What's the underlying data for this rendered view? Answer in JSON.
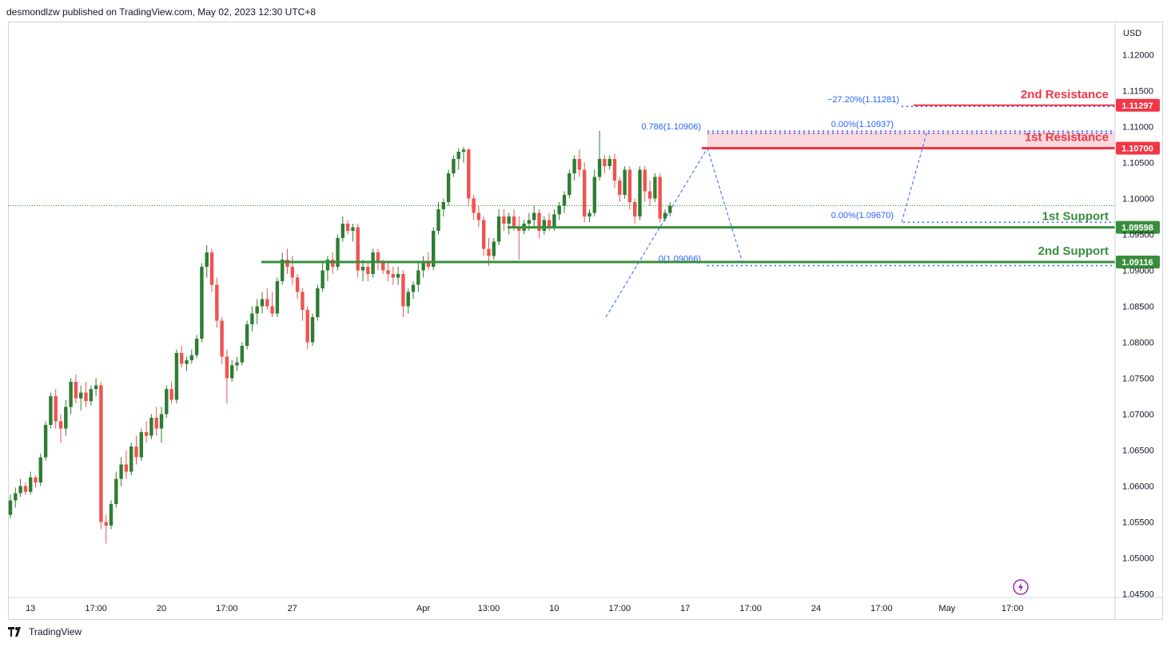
{
  "header": {
    "publish_line": "desmondlzw published on TradingView.com, May 02, 2023 12:30 UTC+8"
  },
  "footer": {
    "brand": "TradingView"
  },
  "colors": {
    "up": "#2e7d32",
    "down": "#ef5350",
    "resistance": "#f23645",
    "support": "#388e3c",
    "fib": "#2962ff",
    "zone": "#f7c9cf"
  },
  "chart_data": {
    "type": "candlestick",
    "symbol_currency": "USD",
    "ylim": [
      1.0445,
      1.1245
    ],
    "y_ticks": [
      "1.12000",
      "1.11500",
      "1.11000",
      "1.10500",
      "1.10000",
      "1.09500",
      "1.09000",
      "1.08500",
      "1.08000",
      "1.07500",
      "1.07000",
      "1.06500",
      "1.06000",
      "1.05500",
      "1.05000",
      "1.04500"
    ],
    "x_ticks": [
      {
        "label": "13",
        "bar": 4
      },
      {
        "label": "17:00",
        "bar": 17
      },
      {
        "label": "20",
        "bar": 30
      },
      {
        "label": "17:00",
        "bar": 43
      },
      {
        "label": "27",
        "bar": 56
      },
      {
        "label": "Apr",
        "bar": 82
      },
      {
        "label": "13:00",
        "bar": 95
      },
      {
        "label": "10",
        "bar": 108
      },
      {
        "label": "17:00",
        "bar": 121
      },
      {
        "label": "17",
        "bar": 134
      },
      {
        "label": "17:00",
        "bar": 147
      },
      {
        "label": "24",
        "bar": 160
      },
      {
        "label": "17:00",
        "bar": 173
      },
      {
        "label": "May",
        "bar": 186
      },
      {
        "label": "17:00",
        "bar": 199
      }
    ],
    "levels": [
      {
        "label": "2nd Resistance",
        "price": 1.11297,
        "price_label": "1.11297",
        "kind": "resistance"
      },
      {
        "label": "1st Resistance",
        "price": 1.107,
        "price_label": "1.10700",
        "kind": "resistance"
      },
      {
        "label": "1st Support",
        "price": 1.09598,
        "price_label": "1.09598",
        "kind": "support"
      },
      {
        "label": "2nd Support",
        "price": 1.09116,
        "price_label": "1.09116",
        "kind": "support"
      }
    ],
    "fib_labels": [
      {
        "text": "−27.20%(1.11281)",
        "price": 1.11281
      },
      {
        "text": "0.786(1.10906)",
        "price": 1.10906
      },
      {
        "text": "0.00%(1.10937)",
        "price": 1.10937
      },
      {
        "text": "0.00%(1.09670)",
        "price": 1.0967
      },
      {
        "text": "0(1.09066)",
        "price": 1.09066
      }
    ],
    "candles": [
      [
        1.056,
        1.0588,
        1.0555,
        1.058
      ],
      [
        1.058,
        1.0598,
        1.057,
        1.059
      ],
      [
        1.059,
        1.061,
        1.0585,
        1.06
      ],
      [
        1.06,
        1.0605,
        1.0588,
        1.0592
      ],
      [
        1.0592,
        1.062,
        1.0588,
        1.0612
      ],
      [
        1.0612,
        1.0615,
        1.0598,
        1.0605
      ],
      [
        1.0605,
        1.0645,
        1.06,
        1.064
      ],
      [
        1.064,
        1.069,
        1.0635,
        1.0685
      ],
      [
        1.0685,
        1.073,
        1.068,
        1.0725
      ],
      [
        1.0725,
        1.0735,
        1.068,
        1.069
      ],
      [
        1.069,
        1.07,
        1.066,
        1.068
      ],
      [
        1.068,
        1.072,
        1.067,
        1.071
      ],
      [
        1.071,
        1.075,
        1.07,
        1.0745
      ],
      [
        1.0745,
        1.0755,
        1.0715,
        1.0722
      ],
      [
        1.0722,
        1.074,
        1.0705,
        1.073
      ],
      [
        1.073,
        1.0745,
        1.071,
        1.0718
      ],
      [
        1.0718,
        1.074,
        1.0712,
        1.0735
      ],
      [
        1.0735,
        1.075,
        1.0725,
        1.074
      ],
      [
        1.074,
        1.0745,
        1.054,
        1.055
      ],
      [
        1.055,
        1.056,
        1.052,
        1.0545
      ],
      [
        1.0545,
        1.058,
        1.054,
        1.0575
      ],
      [
        1.0575,
        1.062,
        1.057,
        1.061
      ],
      [
        1.061,
        1.064,
        1.06,
        1.063
      ],
      [
        1.063,
        1.065,
        1.061,
        1.062
      ],
      [
        1.062,
        1.066,
        1.0615,
        1.0655
      ],
      [
        1.0655,
        1.067,
        1.063,
        1.064
      ],
      [
        1.064,
        1.068,
        1.0635,
        1.0675
      ],
      [
        1.0675,
        1.069,
        1.066,
        1.067
      ],
      [
        1.067,
        1.07,
        1.0665,
        1.0695
      ],
      [
        1.0695,
        1.071,
        1.067,
        1.068
      ],
      [
        1.068,
        1.071,
        1.066,
        1.07
      ],
      [
        1.07,
        1.074,
        1.0695,
        1.0735
      ],
      [
        1.0735,
        1.0745,
        1.0715,
        1.072
      ],
      [
        1.072,
        1.079,
        1.0715,
        1.0785
      ],
      [
        1.0785,
        1.0795,
        1.0765,
        1.077
      ],
      [
        1.077,
        1.078,
        1.076,
        1.0775
      ],
      [
        1.0775,
        1.079,
        1.077,
        1.0782
      ],
      [
        1.0782,
        1.081,
        1.0778,
        1.0805
      ],
      [
        1.0805,
        1.091,
        1.08,
        1.0905
      ],
      [
        1.0905,
        1.0935,
        1.089,
        1.0925
      ],
      [
        1.0925,
        1.093,
        1.087,
        1.088
      ],
      [
        1.088,
        1.089,
        1.082,
        1.083
      ],
      [
        1.083,
        1.0835,
        1.077,
        1.078
      ],
      [
        1.078,
        1.079,
        1.0715,
        1.075
      ],
      [
        1.075,
        1.0775,
        1.0745,
        1.0768
      ],
      [
        1.0768,
        1.078,
        1.076,
        1.0772
      ],
      [
        1.0772,
        1.08,
        1.0768,
        1.0795
      ],
      [
        1.0795,
        1.083,
        1.079,
        1.0825
      ],
      [
        1.0825,
        1.085,
        1.0815,
        1.084
      ],
      [
        1.084,
        1.086,
        1.0825,
        1.085
      ],
      [
        1.085,
        1.087,
        1.084,
        1.086
      ],
      [
        1.086,
        1.0875,
        1.0845,
        1.085
      ],
      [
        1.085,
        1.087,
        1.0835,
        1.084
      ],
      [
        1.084,
        1.089,
        1.0835,
        1.0885
      ],
      [
        1.0885,
        1.0925,
        1.088,
        1.0915
      ],
      [
        1.0915,
        1.093,
        1.0895,
        1.0905
      ],
      [
        1.0905,
        1.092,
        1.088,
        1.089
      ],
      [
        1.089,
        1.0895,
        1.086,
        1.087
      ],
      [
        1.087,
        1.0875,
        1.083,
        1.0845
      ],
      [
        1.0845,
        1.085,
        1.079,
        1.08
      ],
      [
        1.08,
        1.084,
        1.0795,
        1.0835
      ],
      [
        1.0835,
        1.088,
        1.083,
        1.0875
      ],
      [
        1.0875,
        1.091,
        1.087,
        1.09
      ],
      [
        1.09,
        1.092,
        1.0885,
        1.0915
      ],
      [
        1.0915,
        1.0925,
        1.0895,
        1.0905
      ],
      [
        1.0905,
        1.095,
        1.09,
        1.0945
      ],
      [
        1.0945,
        1.0975,
        1.094,
        1.0965
      ],
      [
        1.0965,
        1.097,
        1.095,
        1.0955
      ],
      [
        1.0955,
        1.0965,
        1.094,
        1.096
      ],
      [
        1.096,
        1.0965,
        1.089,
        1.09
      ],
      [
        1.09,
        1.0915,
        1.0885,
        1.0905
      ],
      [
        1.0905,
        1.091,
        1.0885,
        1.0895
      ],
      [
        1.0895,
        1.093,
        1.089,
        1.0925
      ],
      [
        1.0925,
        1.093,
        1.09,
        1.091
      ],
      [
        1.091,
        1.0915,
        1.0895,
        1.09
      ],
      [
        1.09,
        1.091,
        1.0885,
        1.0895
      ],
      [
        1.0895,
        1.0905,
        1.088,
        1.089
      ],
      [
        1.089,
        1.0905,
        1.088,
        1.0895
      ],
      [
        1.0895,
        1.09,
        1.0835,
        1.085
      ],
      [
        1.085,
        1.0875,
        1.084,
        1.087
      ],
      [
        1.087,
        1.0885,
        1.086,
        1.088
      ],
      [
        1.088,
        1.091,
        1.087,
        1.09
      ],
      [
        1.09,
        1.092,
        1.089,
        1.0912
      ],
      [
        1.0912,
        1.0925,
        1.09,
        1.0905
      ],
      [
        1.0905,
        1.096,
        1.09,
        1.0955
      ],
      [
        1.0955,
        1.0995,
        1.095,
        1.0985
      ],
      [
        1.0985,
        1.1,
        1.0975,
        1.0995
      ],
      [
        1.0995,
        1.104,
        1.099,
        1.1035
      ],
      [
        1.1035,
        1.106,
        1.103,
        1.1055
      ],
      [
        1.1055,
        1.107,
        1.104,
        1.1065
      ],
      [
        1.1065,
        1.1072,
        1.105,
        1.1068
      ],
      [
        1.1068,
        1.107,
        1.099,
        1.1
      ],
      [
        1.1,
        1.1005,
        1.097,
        1.098
      ],
      [
        1.098,
        1.099,
        1.096,
        1.097
      ],
      [
        1.097,
        1.0975,
        1.092,
        1.093
      ],
      [
        1.093,
        1.0945,
        1.0906,
        1.092
      ],
      [
        1.092,
        1.0945,
        1.0915,
        1.094
      ],
      [
        1.094,
        1.0985,
        1.0935,
        1.0975
      ],
      [
        1.0975,
        1.0985,
        1.0955,
        1.0965
      ],
      [
        1.0965,
        1.098,
        1.095,
        1.0975
      ],
      [
        1.0975,
        1.0985,
        1.0955,
        1.096
      ],
      [
        1.096,
        1.0975,
        1.0915,
        1.0955
      ],
      [
        1.0955,
        1.097,
        1.095,
        1.0965
      ],
      [
        1.0965,
        1.098,
        1.0955,
        1.097
      ],
      [
        1.097,
        1.099,
        1.096,
        1.098
      ],
      [
        1.098,
        1.0985,
        1.0945,
        1.0955
      ],
      [
        1.0955,
        1.0975,
        1.095,
        1.097
      ],
      [
        1.097,
        1.098,
        1.0955,
        1.096
      ],
      [
        1.096,
        1.0985,
        1.0955,
        1.0978
      ],
      [
        1.0978,
        1.0995,
        1.097,
        1.099
      ],
      [
        1.099,
        1.101,
        1.098,
        1.1005
      ],
      [
        1.1005,
        1.104,
        1.1,
        1.1035
      ],
      [
        1.1035,
        1.106,
        1.1025,
        1.1055
      ],
      [
        1.1055,
        1.1068,
        1.103,
        1.104
      ],
      [
        1.104,
        1.105,
        1.0967,
        1.0975
      ],
      [
        1.0975,
        1.0985,
        1.0967,
        1.098
      ],
      [
        1.098,
        1.104,
        1.0975,
        1.103
      ],
      [
        1.103,
        1.1094,
        1.1025,
        1.1055
      ],
      [
        1.1055,
        1.106,
        1.1035,
        1.1045
      ],
      [
        1.1045,
        1.106,
        1.104,
        1.1055
      ],
      [
        1.1055,
        1.1062,
        1.1015,
        1.1025
      ],
      [
        1.1025,
        1.103,
        1.0995,
        1.1005
      ],
      [
        1.1005,
        1.1045,
        1.1,
        1.104
      ],
      [
        1.104,
        1.1045,
        1.0985,
        1.0995
      ],
      [
        1.0995,
        1.1,
        1.0965,
        1.0975
      ],
      [
        1.0975,
        1.1045,
        1.097,
        1.104
      ],
      [
        1.104,
        1.1045,
        1.0995,
        1.101
      ],
      [
        1.101,
        1.1025,
        1.099,
        1.1
      ],
      [
        1.1,
        1.1035,
        1.0995,
        1.103
      ],
      [
        1.103,
        1.1035,
        1.0967,
        1.0972
      ],
      [
        1.0972,
        1.0985,
        1.0968,
        1.098
      ],
      [
        1.098,
        1.0995,
        1.0975,
        1.099
      ]
    ]
  }
}
